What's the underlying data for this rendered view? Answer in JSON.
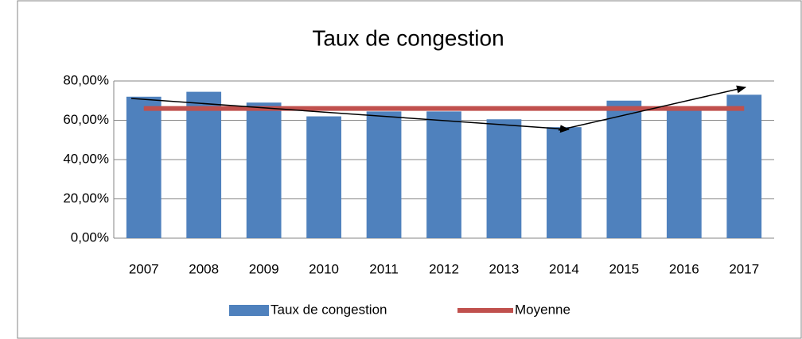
{
  "chart_data": {
    "type": "bar",
    "title": "Taux de congestion",
    "categories": [
      "2007",
      "2008",
      "2009",
      "2010",
      "2011",
      "2012",
      "2013",
      "2014",
      "2015",
      "2016",
      "2017"
    ],
    "series": [
      {
        "name": "Taux de congestion",
        "type": "bar",
        "color": "#4f81bd",
        "values": [
          72,
          74.5,
          69,
          62,
          64.5,
          64.5,
          60.5,
          56.5,
          70,
          66,
          73
        ]
      },
      {
        "name": "Moyenne",
        "type": "line",
        "color": "#c0504d",
        "values": [
          66,
          66,
          66,
          66,
          66,
          66,
          66,
          66,
          66,
          66,
          66
        ]
      }
    ],
    "ylim": [
      0,
      80
    ],
    "yticks": [
      {
        "value": 0,
        "label": "0,00%"
      },
      {
        "value": 20,
        "label": "20,00%"
      },
      {
        "value": 40,
        "label": "40,00%"
      },
      {
        "value": 60,
        "label": "60,00%"
      },
      {
        "value": 80,
        "label": "80,00%"
      }
    ],
    "grid": true,
    "legend": "bottom"
  }
}
